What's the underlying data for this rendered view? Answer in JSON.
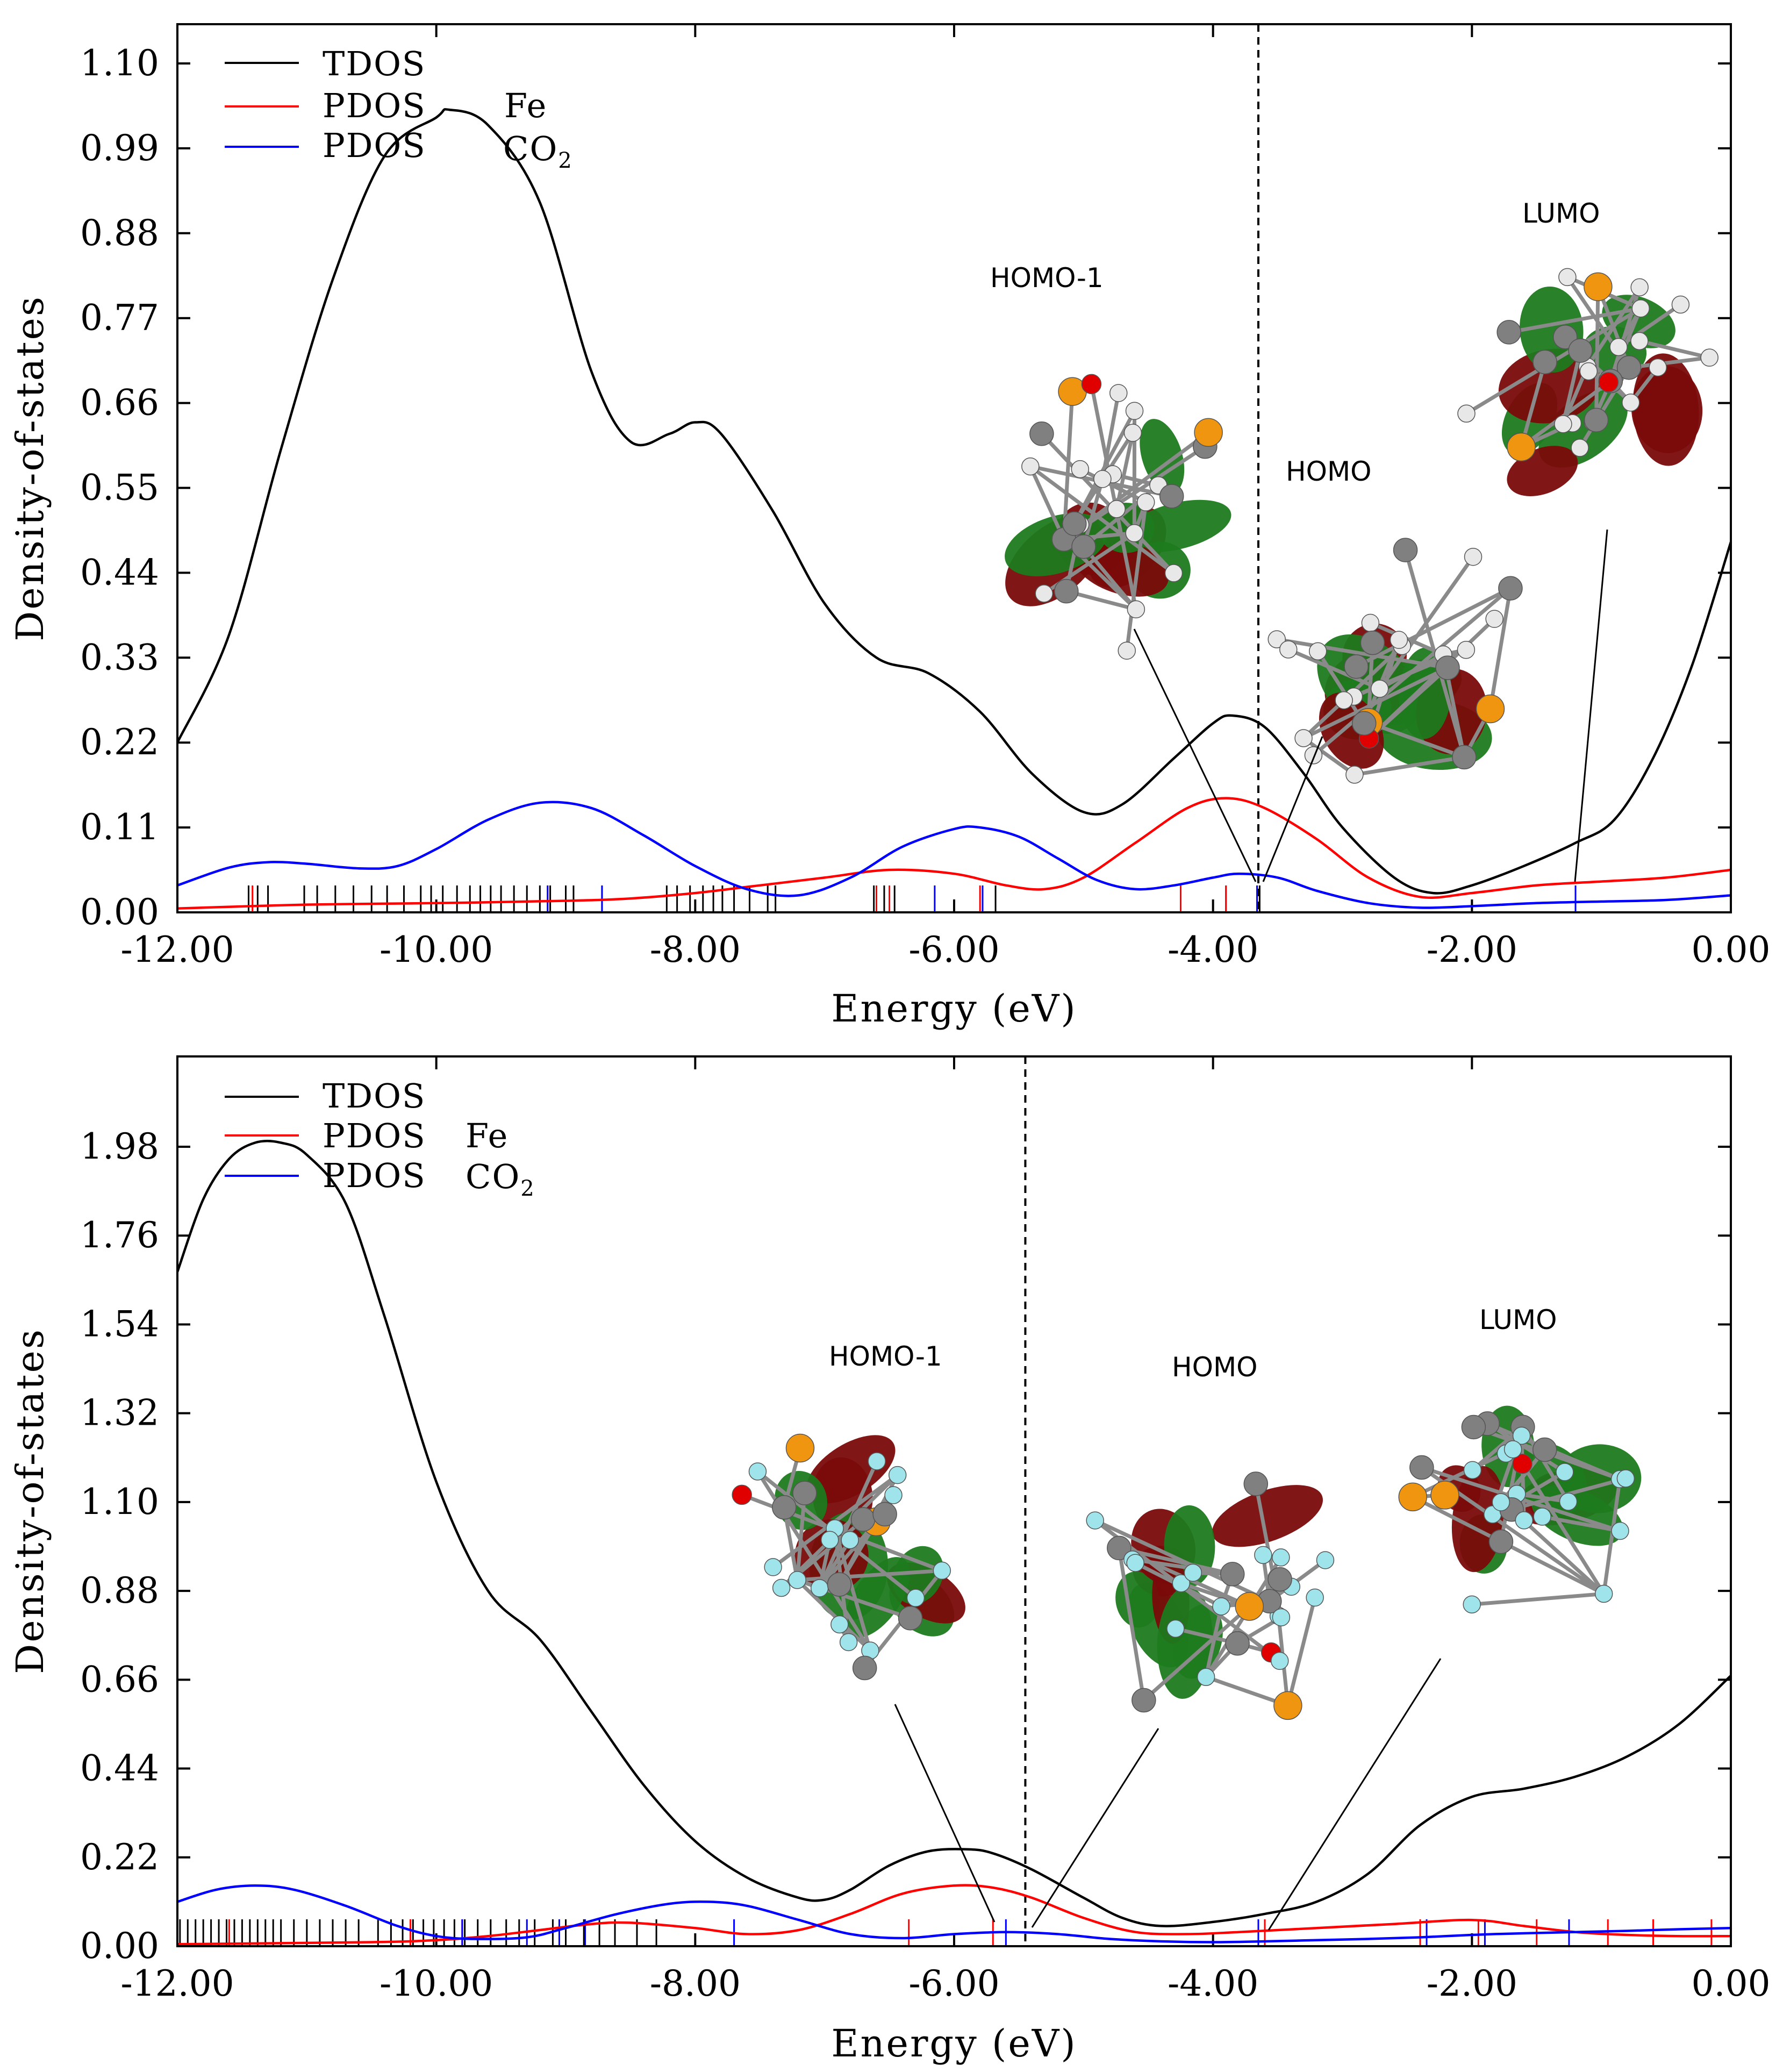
{
  "colors": {
    "tdos": "#000000",
    "pdos_fe": "#ff0000",
    "pdos_co2": "#0000ff",
    "lobe_pos": "#7a0a0a",
    "lobe_neg": "#1e7a1e",
    "atom_c": "#808080",
    "atom_h_top": "#e8e8e8",
    "atom_f": "#9ee4ea",
    "atom_p": "#f0950f",
    "atom_o": "#e00000"
  },
  "chart_data": [
    {
      "type": "line",
      "xlabel": "Energy (eV)",
      "ylabel": "Density-of-states",
      "xlim": [
        -12.0,
        0.0
      ],
      "ylim": [
        0.0,
        1.1
      ],
      "xticks": [
        "-12.00",
        "-10.00",
        "-8.00",
        "-6.00",
        "-4.00",
        "-2.00",
        "0.00"
      ],
      "yticks": [
        "0.00",
        "0.11",
        "0.22",
        "0.33",
        "0.44",
        "0.55",
        "0.66",
        "0.77",
        "0.88",
        "0.99",
        "1.10"
      ],
      "homo_energy": -3.65,
      "legend": {
        "position": "top-left",
        "entries": [
          {
            "line": "TDOS",
            "target": ""
          },
          {
            "line": "PDOS",
            "target": "Fe"
          },
          {
            "line": "PDOS",
            "target": "CO2",
            "target_base": "CO",
            "target_sub": "2"
          }
        ]
      },
      "series": [
        {
          "name": "TDOS",
          "color": "#000000",
          "x": [
            -12.0,
            -11.6,
            -11.2,
            -10.8,
            -10.4,
            -10.0,
            -9.9,
            -9.6,
            -9.2,
            -8.8,
            -8.5,
            -8.2,
            -8.0,
            -7.8,
            -7.4,
            -7.0,
            -6.6,
            -6.2,
            -5.8,
            -5.4,
            -5.0,
            -4.7,
            -4.3,
            -4.0,
            -3.85,
            -3.6,
            -3.3,
            -3.0,
            -2.6,
            -2.3,
            -2.0,
            -1.6,
            -1.2,
            -0.9,
            -0.6,
            -0.3,
            0.0
          ],
          "values": [
            0.22,
            0.36,
            0.6,
            0.82,
            0.98,
            1.03,
            1.04,
            1.02,
            0.92,
            0.7,
            0.61,
            0.62,
            0.635,
            0.62,
            0.52,
            0.4,
            0.33,
            0.31,
            0.26,
            0.18,
            0.13,
            0.14,
            0.2,
            0.245,
            0.255,
            0.24,
            0.18,
            0.11,
            0.045,
            0.025,
            0.035,
            0.06,
            0.09,
            0.12,
            0.2,
            0.32,
            0.48
          ]
        },
        {
          "name": "PDOS Fe",
          "color": "#ff0000",
          "x": [
            -12.0,
            -11.0,
            -10.0,
            -9.0,
            -8.5,
            -8.0,
            -7.5,
            -7.0,
            -6.5,
            -6.0,
            -5.6,
            -5.3,
            -5.0,
            -4.6,
            -4.2,
            -3.9,
            -3.6,
            -3.2,
            -2.8,
            -2.4,
            -2.0,
            -1.5,
            -1.0,
            -0.5,
            0.0
          ],
          "values": [
            0.005,
            0.01,
            0.012,
            0.015,
            0.018,
            0.025,
            0.035,
            0.045,
            0.055,
            0.05,
            0.035,
            0.03,
            0.045,
            0.09,
            0.135,
            0.148,
            0.135,
            0.095,
            0.045,
            0.02,
            0.025,
            0.035,
            0.04,
            0.045,
            0.055
          ]
        },
        {
          "name": "PDOS CO2",
          "color": "#0000ff",
          "x": [
            -12.0,
            -11.6,
            -11.3,
            -11.0,
            -10.6,
            -10.3,
            -10.0,
            -9.6,
            -9.2,
            -8.8,
            -8.4,
            -8.0,
            -7.6,
            -7.2,
            -6.8,
            -6.4,
            -6.0,
            -5.8,
            -5.5,
            -5.2,
            -4.9,
            -4.6,
            -4.3,
            -4.0,
            -3.8,
            -3.5,
            -3.2,
            -2.8,
            -2.4,
            -2.0,
            -1.5,
            -1.0,
            -0.5,
            0.0
          ],
          "values": [
            0.035,
            0.058,
            0.065,
            0.063,
            0.057,
            0.06,
            0.082,
            0.12,
            0.142,
            0.135,
            0.1,
            0.06,
            0.03,
            0.022,
            0.045,
            0.085,
            0.108,
            0.11,
            0.098,
            0.07,
            0.042,
            0.03,
            0.035,
            0.045,
            0.05,
            0.045,
            0.028,
            0.012,
            0.006,
            0.008,
            0.012,
            0.014,
            0.016,
            0.022
          ]
        }
      ],
      "sticks": {
        "black": [
          -11.45,
          -11.38,
          -11.3,
          -11.02,
          -10.92,
          -10.78,
          -10.64,
          -10.5,
          -10.38,
          -10.25,
          -10.12,
          -10.04,
          -9.95,
          -9.84,
          -9.74,
          -9.66,
          -9.58,
          -9.5,
          -9.4,
          -9.3,
          -9.2,
          -9.12,
          -9.0,
          -8.94,
          -8.72,
          -8.22,
          -8.14,
          -8.04,
          -7.94,
          -7.86,
          -7.79,
          -7.7,
          -7.58,
          -7.44,
          -7.38,
          -6.62,
          -6.54,
          -6.46,
          -5.68,
          -3.9,
          -3.66,
          -3.64
        ],
        "red": [
          -11.42,
          -9.14,
          -6.6,
          -6.5,
          -5.8,
          -4.25,
          -3.9,
          -3.66
        ],
        "blue": [
          -9.14,
          -8.72,
          -6.15,
          -5.78,
          -3.66,
          -1.2
        ]
      },
      "orbitals": [
        {
          "label": "HOMO-1",
          "energy": -3.68,
          "scheme": "light"
        },
        {
          "label": "HOMO",
          "energy": -3.6,
          "scheme": "light"
        },
        {
          "label": "LUMO",
          "energy": -1.2,
          "scheme": "light"
        }
      ]
    },
    {
      "type": "line",
      "xlabel": "Energy (eV)",
      "ylabel": "Density-of-states",
      "xlim": [
        -12.0,
        0.0
      ],
      "ylim": [
        0.0,
        2.2
      ],
      "xticks": [
        "-12.00",
        "-10.00",
        "-8.00",
        "-6.00",
        "-4.00",
        "-2.00",
        "0.00"
      ],
      "yticks": [
        "0.00",
        "0.22",
        "0.44",
        "0.66",
        "0.88",
        "1.10",
        "1.32",
        "1.54",
        "1.76",
        "1.98"
      ],
      "homo_energy": -5.45,
      "legend": {
        "position": "top-left",
        "entries": [
          {
            "line": "TDOS",
            "target": ""
          },
          {
            "line": "PDOS",
            "target": "Fe"
          },
          {
            "line": "PDOS",
            "target": "CO2",
            "target_base": "CO",
            "target_sub": "2"
          }
        ]
      },
      "series": [
        {
          "name": "TDOS",
          "color": "#000000",
          "x": [
            -12.0,
            -11.8,
            -11.6,
            -11.4,
            -11.2,
            -11.0,
            -10.7,
            -10.4,
            -10.0,
            -9.6,
            -9.2,
            -8.8,
            -8.4,
            -8.0,
            -7.6,
            -7.2,
            -7.0,
            -6.8,
            -6.5,
            -6.2,
            -5.9,
            -5.7,
            -5.4,
            -5.0,
            -4.7,
            -4.4,
            -4.0,
            -3.6,
            -3.2,
            -2.8,
            -2.4,
            -2.0,
            -1.6,
            -1.2,
            -0.8,
            -0.4,
            0.0
          ],
          "values": [
            1.67,
            1.85,
            1.95,
            1.99,
            1.99,
            1.96,
            1.84,
            1.56,
            1.15,
            0.88,
            0.76,
            0.58,
            0.4,
            0.26,
            0.17,
            0.12,
            0.115,
            0.14,
            0.2,
            0.235,
            0.24,
            0.23,
            0.19,
            0.12,
            0.07,
            0.05,
            0.06,
            0.08,
            0.11,
            0.18,
            0.3,
            0.37,
            0.39,
            0.42,
            0.47,
            0.55,
            0.67
          ]
        },
        {
          "name": "PDOS Fe",
          "color": "#ff0000",
          "x": [
            -12.0,
            -10.5,
            -10.0,
            -9.6,
            -9.2,
            -8.8,
            -8.5,
            -8.0,
            -7.6,
            -7.2,
            -6.8,
            -6.4,
            -6.0,
            -5.7,
            -5.4,
            -5.0,
            -4.6,
            -4.2,
            -3.8,
            -3.2,
            -2.6,
            -2.0,
            -1.6,
            -1.2,
            -0.8,
            -0.4,
            0.0
          ],
          "values": [
            0.005,
            0.01,
            0.015,
            0.025,
            0.04,
            0.055,
            0.058,
            0.045,
            0.03,
            0.04,
            0.08,
            0.13,
            0.15,
            0.145,
            0.12,
            0.07,
            0.035,
            0.03,
            0.035,
            0.045,
            0.055,
            0.065,
            0.05,
            0.035,
            0.028,
            0.025,
            0.025
          ]
        },
        {
          "name": "PDOS CO2",
          "color": "#0000ff",
          "x": [
            -12.0,
            -11.7,
            -11.4,
            -11.1,
            -10.7,
            -10.3,
            -10.0,
            -9.7,
            -9.3,
            -9.0,
            -8.6,
            -8.2,
            -7.9,
            -7.6,
            -7.2,
            -6.8,
            -6.4,
            -6.0,
            -5.6,
            -5.2,
            -4.8,
            -4.4,
            -4.0,
            -3.6,
            -3.2,
            -2.8,
            -2.4,
            -2.0,
            -1.6,
            -1.2,
            -0.8,
            -0.4,
            0.0
          ],
          "values": [
            0.11,
            0.14,
            0.15,
            0.14,
            0.1,
            0.05,
            0.025,
            0.018,
            0.022,
            0.045,
            0.08,
            0.105,
            0.11,
            0.1,
            0.065,
            0.03,
            0.02,
            0.03,
            0.035,
            0.03,
            0.018,
            0.012,
            0.01,
            0.012,
            0.015,
            0.018,
            0.022,
            0.028,
            0.032,
            0.035,
            0.038,
            0.042,
            0.045
          ]
        }
      ],
      "sticks": {
        "black": [
          -11.98,
          -11.92,
          -11.86,
          -11.8,
          -11.74,
          -11.68,
          -11.62,
          -11.56,
          -11.5,
          -11.44,
          -11.38,
          -11.32,
          -11.26,
          -11.2,
          -11.1,
          -11.0,
          -10.9,
          -10.8,
          -10.7,
          -10.6,
          -10.45,
          -10.35,
          -10.26,
          -10.18,
          -10.1,
          -10.02,
          -9.94,
          -9.86,
          -9.78,
          -9.68,
          -9.58,
          -9.46,
          -9.36,
          -9.24,
          -9.1,
          -9.0,
          -8.86,
          -8.74,
          -8.62,
          -8.45,
          -8.3
        ],
        "red": [
          -11.6,
          -10.2,
          -9.8,
          -6.35,
          -5.7,
          -3.6,
          -2.4,
          -1.95,
          -1.5,
          -0.95,
          -0.6,
          -0.15
        ],
        "blue": [
          -9.8,
          -9.3,
          -9.05,
          -8.85,
          -7.7,
          -5.6,
          -3.65,
          -2.35,
          -1.9,
          -1.25
        ]
      },
      "orbitals": [
        {
          "label": "HOMO-1",
          "energy": -5.72,
          "scheme": "fluoro"
        },
        {
          "label": "HOMO",
          "energy": -5.52,
          "scheme": "fluoro"
        },
        {
          "label": "LUMO",
          "energy": -3.6,
          "scheme": "fluoro"
        }
      ]
    }
  ]
}
